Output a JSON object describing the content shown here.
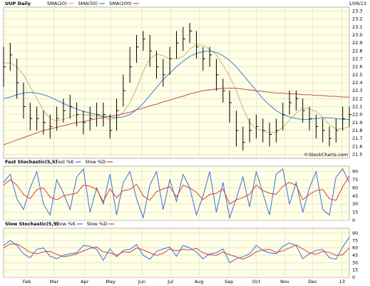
{
  "chart_data": [
    {
      "type": "ohlc",
      "title": "UUP Daily",
      "date": "1/09/13",
      "watermark": "©StockCharts.com",
      "bar_color": "#000000",
      "high": [
        22.85,
        22.9,
        22.7,
        22.4,
        22.15,
        22.1,
        22.05,
        22.0,
        22.1,
        22.2,
        22.25,
        22.15,
        22.05,
        22.1,
        22.15,
        22.15,
        22.0,
        22.2,
        22.5,
        22.85,
        23.0,
        23.05,
        23.0,
        22.8,
        22.7,
        22.85,
        23.05,
        23.1,
        23.15,
        23.05,
        22.85,
        22.85,
        22.7,
        22.45,
        22.3,
        22.05,
        21.85,
        21.95,
        22.0,
        21.95,
        21.9,
        21.95,
        22.15,
        22.3,
        22.3,
        22.2,
        22.1,
        22.0,
        21.95,
        21.85,
        21.95,
        22.1,
        22.1
      ],
      "low": [
        22.35,
        22.55,
        22.2,
        21.95,
        21.8,
        21.8,
        21.75,
        21.7,
        21.8,
        21.9,
        21.95,
        21.85,
        21.75,
        21.8,
        21.85,
        21.85,
        21.7,
        21.8,
        22.1,
        22.4,
        22.65,
        22.8,
        22.6,
        22.45,
        22.35,
        22.5,
        22.7,
        22.8,
        22.9,
        22.7,
        22.55,
        22.6,
        22.3,
        22.15,
        21.9,
        21.6,
        21.55,
        21.65,
        21.7,
        21.65,
        21.6,
        21.65,
        21.8,
        22.0,
        22.05,
        21.9,
        21.8,
        21.7,
        21.65,
        21.6,
        21.65,
        21.8,
        21.85
      ],
      "close": [
        22.6,
        22.75,
        22.4,
        22.1,
        21.95,
        21.95,
        21.9,
        21.85,
        21.95,
        22.05,
        22.1,
        22.0,
        21.9,
        21.95,
        22.0,
        22.0,
        21.8,
        22.05,
        22.3,
        22.6,
        22.85,
        22.95,
        22.8,
        22.6,
        22.5,
        22.7,
        22.9,
        22.95,
        23.05,
        22.85,
        22.7,
        22.75,
        22.5,
        22.3,
        22.15,
        21.8,
        21.65,
        21.8,
        21.85,
        21.8,
        21.75,
        21.8,
        22.0,
        22.15,
        22.2,
        22.05,
        21.95,
        21.85,
        21.8,
        21.7,
        21.8,
        21.95,
        22.0
      ],
      "series": [
        {
          "name": "SMA(20)",
          "color": "#d2b26a",
          "values": [
            22.65,
            22.65,
            22.6,
            22.5,
            22.35,
            22.2,
            22.05,
            21.95,
            21.92,
            21.94,
            21.97,
            22.0,
            22.0,
            21.99,
            21.98,
            21.97,
            21.93,
            21.96,
            22.03,
            22.15,
            22.33,
            22.54,
            22.7,
            22.76,
            22.74,
            22.7,
            22.7,
            22.73,
            22.82,
            22.88,
            22.87,
            22.82,
            22.75,
            22.62,
            22.48,
            22.3,
            22.08,
            21.9,
            21.82,
            21.8,
            21.77,
            21.78,
            21.84,
            21.93,
            22.02,
            22.08,
            22.07,
            22.04,
            21.97,
            21.87,
            21.82,
            21.82,
            21.85
          ]
        },
        {
          "name": "SMA(50)",
          "color": "#3b7fd6",
          "values": [
            22.2,
            22.22,
            22.25,
            22.27,
            22.28,
            22.27,
            22.25,
            22.22,
            22.18,
            22.14,
            22.1,
            22.07,
            22.04,
            22.02,
            22.0,
            21.98,
            21.97,
            21.96,
            21.97,
            22.0,
            22.06,
            22.14,
            22.24,
            22.34,
            22.44,
            22.52,
            22.6,
            22.67,
            22.73,
            22.77,
            22.79,
            22.8,
            22.78,
            22.74,
            22.68,
            22.6,
            22.5,
            22.4,
            22.3,
            22.2,
            22.12,
            22.05,
            22.0,
            21.97,
            21.95,
            21.94,
            21.94,
            21.95,
            21.96,
            21.96,
            21.95,
            21.94,
            21.94
          ]
        },
        {
          "name": "SMA(200)",
          "color": "#c0504d",
          "values": [
            21.62,
            21.65,
            21.68,
            21.71,
            21.74,
            21.77,
            21.8,
            21.82,
            21.84,
            21.86,
            21.88,
            21.9,
            21.91,
            21.93,
            21.95,
            21.96,
            21.98,
            21.99,
            22.01,
            22.03,
            22.06,
            22.08,
            22.11,
            22.13,
            22.16,
            22.18,
            22.21,
            22.23,
            22.26,
            22.28,
            22.3,
            22.31,
            22.32,
            22.33,
            22.33,
            22.33,
            22.32,
            22.31,
            22.3,
            22.29,
            22.28,
            22.27,
            22.27,
            22.26,
            22.26,
            22.25,
            22.25,
            22.24,
            22.24,
            22.23,
            22.23,
            22.22,
            22.22
          ]
        }
      ],
      "xlim": [
        0,
        52
      ],
      "ylim": [
        21.45,
        23.35
      ],
      "yticks": [
        21.5,
        21.6,
        21.7,
        21.8,
        21.9,
        {
          "value": 22.0,
          "label": "22.0"
        },
        22.1,
        22.2,
        22.3,
        22.4,
        22.5,
        22.6,
        22.7,
        22.8,
        22.9,
        {
          "value": 23.0,
          "label": "23.0"
        },
        23.1,
        23.2,
        23.3
      ],
      "grid": true
    },
    {
      "type": "line",
      "title": "Fast Stochastic(5,5)",
      "series": [
        {
          "name": "Fast %K",
          "color": "#3b6fd8",
          "values": [
            70,
            85,
            40,
            20,
            60,
            90,
            30,
            10,
            75,
            50,
            20,
            80,
            95,
            15,
            60,
            30,
            85,
            10,
            70,
            90,
            40,
            5,
            65,
            90,
            20,
            75,
            35,
            85,
            60,
            10,
            45,
            90,
            15,
            70,
            5,
            40,
            80,
            25,
            90,
            50,
            10,
            85,
            95,
            30,
            70,
            15,
            60,
            90,
            20,
            10,
            80,
            95,
            70
          ]
        },
        {
          "name": "Slow %D",
          "color": "#d04040",
          "values": [
            65,
            75,
            65,
            48,
            40,
            57,
            60,
            43,
            38,
            45,
            48,
            50,
            65,
            63,
            57,
            35,
            58,
            42,
            55,
            57,
            67,
            45,
            37,
            53,
            58,
            62,
            43,
            65,
            60,
            52,
            38,
            48,
            50,
            58,
            30,
            38,
            42,
            48,
            65,
            55,
            50,
            48,
            63,
            70,
            65,
            38,
            48,
            55,
            57,
            40,
            37,
            62,
            82
          ]
        }
      ],
      "xlim": [
        0,
        52
      ],
      "ylim": [
        0,
        100
      ],
      "yticks": [
        0,
        15,
        30,
        45,
        60,
        75,
        90
      ],
      "grid": true
    },
    {
      "type": "line",
      "title": "Slow Stochastic(5,5)",
      "series": [
        {
          "name": "Slow %K",
          "color": "#3b6fd8",
          "values": [
            65,
            75,
            65,
            48,
            40,
            57,
            60,
            43,
            38,
            45,
            48,
            50,
            65,
            63,
            57,
            35,
            58,
            42,
            55,
            57,
            67,
            45,
            37,
            53,
            58,
            62,
            43,
            65,
            60,
            52,
            38,
            48,
            50,
            58,
            30,
            38,
            42,
            48,
            65,
            55,
            50,
            48,
            63,
            70,
            65,
            38,
            48,
            55,
            57,
            40,
            37,
            62,
            82
          ]
        },
        {
          "name": "Slow %D",
          "color": "#d04040",
          "values": [
            60,
            68,
            68,
            60,
            51,
            48,
            52,
            53,
            47,
            42,
            44,
            48,
            54,
            59,
            62,
            52,
            50,
            45,
            52,
            51,
            60,
            56,
            50,
            45,
            49,
            58,
            54,
            57,
            56,
            59,
            50,
            46,
            45,
            52,
            46,
            42,
            37,
            43,
            52,
            56,
            57,
            51,
            54,
            60,
            66,
            58,
            50,
            47,
            53,
            51,
            45,
            46,
            60
          ]
        }
      ],
      "xlim": [
        0,
        52
      ],
      "ylim": [
        0,
        100
      ],
      "yticks": [
        0,
        15,
        30,
        45,
        60,
        75,
        90
      ],
      "xticks": [
        {
          "value": 3.5,
          "label": "Feb"
        },
        {
          "value": 7.6,
          "label": "Mar"
        },
        {
          "value": 12.2,
          "label": "Apr"
        },
        {
          "value": 16.1,
          "label": "May"
        },
        {
          "value": 20.8,
          "label": "Jun"
        },
        {
          "value": 25.1,
          "label": "Jul"
        },
        {
          "value": 29.4,
          "label": "Aug"
        },
        {
          "value": 33.9,
          "label": "Sep"
        },
        {
          "value": 38,
          "label": "Oct"
        },
        {
          "value": 42.3,
          "label": "Nov"
        },
        {
          "value": 46.5,
          "label": "Dec"
        },
        {
          "value": 50.9,
          "label": "13"
        }
      ],
      "grid": true
    }
  ]
}
